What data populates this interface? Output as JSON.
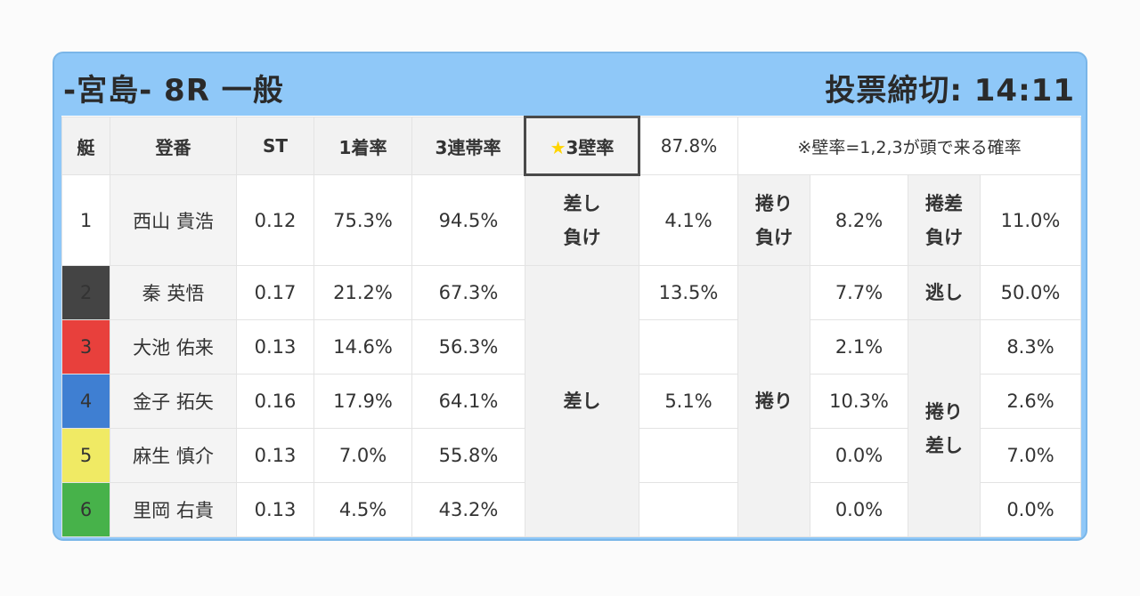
{
  "header": {
    "race_title": "-宮島- 8R 一般",
    "deadline": "投票締切: 14:11"
  },
  "columns": {
    "lane": "艇",
    "name": "登番",
    "st": "ST",
    "win_rate": "1着率",
    "top3_rate": "3連帯率",
    "kabe_label": "3壁率",
    "kabe_value": "87.8%",
    "kabe_note": "※壁率=1,2,3が頭で来る確率"
  },
  "labels": {
    "sashi_make_1": "差し",
    "sashi_make_2": "負け",
    "makuri_make_1": "捲り",
    "makuri_make_2": "負け",
    "makurisashi_make_1": "捲差",
    "makurisashi_make_2": "負け",
    "nige": "逃し",
    "sashi": "差し",
    "makuri": "捲り",
    "makurisashi_1": "捲り",
    "makurisashi_2": "差し"
  },
  "rows": [
    {
      "lane": "1",
      "name": "西山 貴浩",
      "st": "0.12",
      "win": "75.3%",
      "top3": "94.5%",
      "col_a": "4.1%",
      "col_b": "8.2%",
      "col_c": "11.0%"
    },
    {
      "lane": "2",
      "name": "秦 英悟",
      "st": "0.17",
      "win": "21.2%",
      "top3": "67.3%",
      "col_a": "13.5%",
      "col_b": "7.7%",
      "col_c": "50.0%"
    },
    {
      "lane": "3",
      "name": "大池 佑来",
      "st": "0.13",
      "win": "14.6%",
      "top3": "56.3%",
      "col_a": "",
      "col_b": "2.1%",
      "col_c": "8.3%"
    },
    {
      "lane": "4",
      "name": "金子 拓矢",
      "st": "0.16",
      "win": "17.9%",
      "top3": "64.1%",
      "col_a": "5.1%",
      "col_b": "10.3%",
      "col_c": "2.6%"
    },
    {
      "lane": "5",
      "name": "麻生 慎介",
      "st": "0.13",
      "win": "7.0%",
      "top3": "55.8%",
      "col_a": "",
      "col_b": "0.0%",
      "col_c": "7.0%"
    },
    {
      "lane": "6",
      "name": "里岡 右貴",
      "st": "0.13",
      "win": "4.5%",
      "top3": "43.2%",
      "col_a": "",
      "col_b": "0.0%",
      "col_c": "0.0%"
    }
  ],
  "lane_colors": {
    "1": "#ffffff",
    "2": "#444444",
    "3": "#e8403c",
    "4": "#3f7fd2",
    "5": "#f0ea64",
    "6": "#47b24a"
  }
}
